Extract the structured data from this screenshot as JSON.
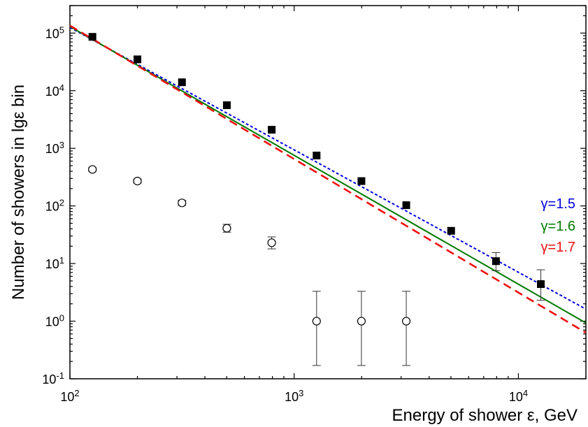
{
  "chart_data": {
    "type": "scatter",
    "xscale": "log",
    "yscale": "log",
    "xlim": [
      100,
      20000
    ],
    "ylim": [
      0.1,
      300000
    ],
    "xlabel": "Energy of shower ε, GeV",
    "ylabel": "Number of showers in lgε bin",
    "x_ticks": [
      {
        "value": 100,
        "base": "10",
        "exp": "2"
      },
      {
        "value": 1000,
        "base": "10",
        "exp": "3"
      },
      {
        "value": 10000,
        "base": "10",
        "exp": "4"
      }
    ],
    "y_ticks": [
      {
        "value": 0.1,
        "base": "10",
        "exp": "-1"
      },
      {
        "value": 1,
        "base": "10",
        "exp": "0"
      },
      {
        "value": 10,
        "base": "10",
        "exp": "1"
      },
      {
        "value": 100,
        "base": "10",
        "exp": "2"
      },
      {
        "value": 1000,
        "base": "10",
        "exp": "3"
      },
      {
        "value": 10000,
        "base": "10",
        "exp": "4"
      },
      {
        "value": 100000,
        "base": "10",
        "exp": "5"
      }
    ],
    "filled_points": [
      {
        "x": 126,
        "y": 86000
      },
      {
        "x": 200,
        "y": 35000
      },
      {
        "x": 316,
        "y": 14000
      },
      {
        "x": 501,
        "y": 5600
      },
      {
        "x": 794,
        "y": 2100
      },
      {
        "x": 1259,
        "y": 750
      },
      {
        "x": 1995,
        "y": 270
      },
      {
        "x": 3162,
        "y": 103
      },
      {
        "x": 5012,
        "y": 37
      },
      {
        "x": 7943,
        "y": 11,
        "lo": 7.5,
        "hi": 15.5
      },
      {
        "x": 12589,
        "y": 4.4,
        "lo": 2.3,
        "hi": 7.8
      }
    ],
    "open_points": [
      {
        "x": 126,
        "y": 430,
        "lo": 400,
        "hi": 460
      },
      {
        "x": 200,
        "y": 270,
        "lo": 250,
        "hi": 292
      },
      {
        "x": 316,
        "y": 113,
        "lo": 102,
        "hi": 125
      },
      {
        "x": 501,
        "y": 41,
        "lo": 35,
        "hi": 48
      },
      {
        "x": 794,
        "y": 23,
        "lo": 18,
        "hi": 29
      },
      {
        "x": 1259,
        "y": 1,
        "lo": 0.17,
        "hi": 3.3
      },
      {
        "x": 1995,
        "y": 1,
        "lo": 0.17,
        "hi": 3.3
      },
      {
        "x": 3162,
        "y": 1,
        "lo": 0.17,
        "hi": 3.3
      }
    ],
    "series": [
      {
        "name": "γ=1.5",
        "color": "#0000dd",
        "dash": "dotted",
        "points": [
          [
            100,
            125000
          ],
          [
            20000,
            1.62
          ]
        ]
      },
      {
        "name": "γ=1.6",
        "color": "#007a00",
        "dash": "solid",
        "points": [
          [
            100,
            130000
          ],
          [
            20000,
            0.93
          ]
        ]
      },
      {
        "name": "γ=1.7",
        "color": "#ee1111",
        "dash": "dashed",
        "points": [
          [
            100,
            135000
          ],
          [
            20000,
            0.63
          ]
        ]
      }
    ],
    "legend_placement": "right"
  }
}
